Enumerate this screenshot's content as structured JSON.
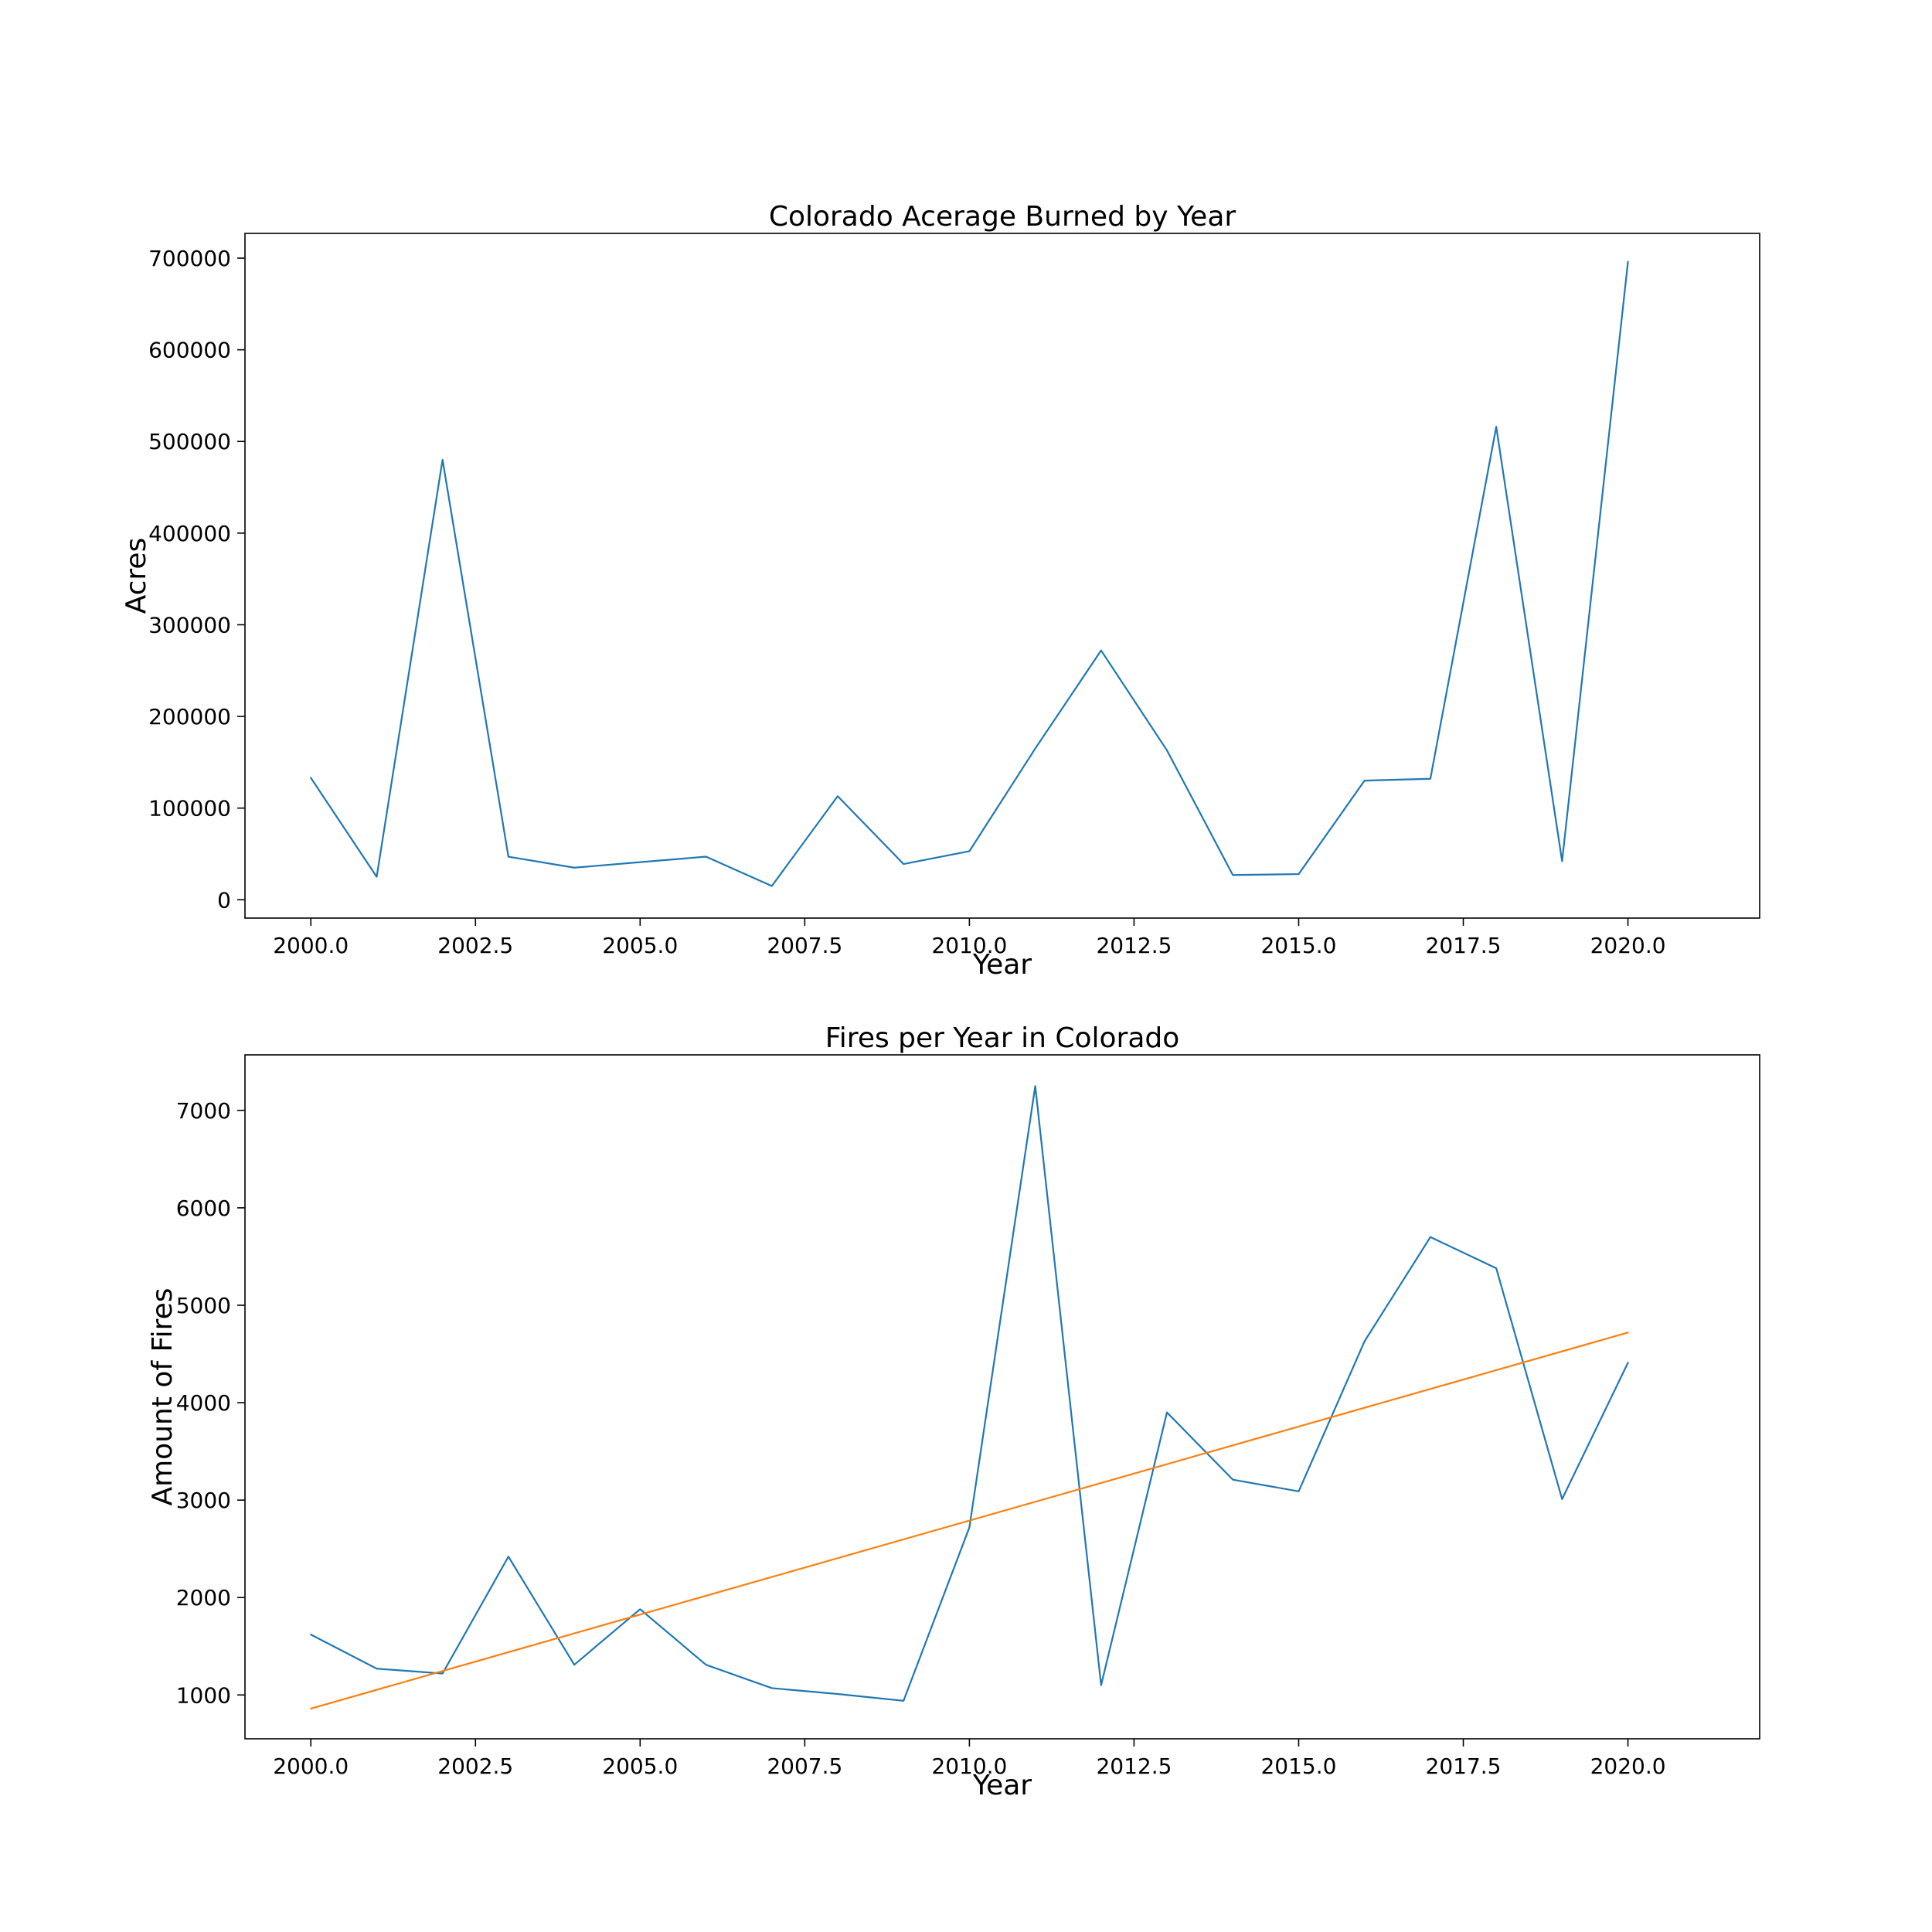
{
  "chart_data": [
    {
      "type": "line",
      "title": "Colorado Acerage Burned by Year",
      "xlabel": "Year",
      "ylabel": "Acres",
      "xlim": [
        1999.0,
        2022.0
      ],
      "ylim": [
        -20000,
        727000
      ],
      "x_ticks": [
        2000.0,
        2002.5,
        2005.0,
        2007.5,
        2010.0,
        2012.5,
        2015.0,
        2017.5,
        2020.0
      ],
      "x_tick_labels": [
        "2000.0",
        "2002.5",
        "2005.0",
        "2007.5",
        "2010.0",
        "2012.5",
        "2015.0",
        "2017.5",
        "2020.0"
      ],
      "y_ticks": [
        0,
        100000,
        200000,
        300000,
        400000,
        500000,
        600000,
        700000
      ],
      "y_tick_labels": [
        "0",
        "100000",
        "200000",
        "300000",
        "400000",
        "500000",
        "600000",
        "700000"
      ],
      "grid": false,
      "x": [
        2000,
        2001,
        2002,
        2003,
        2004,
        2005,
        2006,
        2007,
        2008,
        2009,
        2010,
        2011,
        2012,
        2013,
        2014,
        2015,
        2016,
        2017,
        2018,
        2019,
        2020
      ],
      "series": [
        {
          "color": "#1f77b4",
          "values": [
            133000,
            25000,
            480000,
            47000,
            35000,
            41000,
            47000,
            15000,
            113000,
            39000,
            53000,
            165000,
            272000,
            163000,
            27000,
            28000,
            130000,
            132000,
            516000,
            42000,
            696000
          ]
        }
      ]
    },
    {
      "type": "line",
      "title": "Fires per Year in Colorado",
      "xlabel": "Year",
      "ylabel": "Amount of Fires",
      "xlim": [
        1999.0,
        2022.0
      ],
      "ylim": [
        550,
        7570
      ],
      "x_ticks": [
        2000.0,
        2002.5,
        2005.0,
        2007.5,
        2010.0,
        2012.5,
        2015.0,
        2017.5,
        2020.0
      ],
      "x_tick_labels": [
        "2000.0",
        "2002.5",
        "2005.0",
        "2007.5",
        "2010.0",
        "2012.5",
        "2015.0",
        "2017.5",
        "2020.0"
      ],
      "y_ticks": [
        1000,
        2000,
        3000,
        4000,
        5000,
        6000,
        7000
      ],
      "y_tick_labels": [
        "1000",
        "2000",
        "3000",
        "4000",
        "5000",
        "6000",
        "7000"
      ],
      "grid": false,
      "x": [
        2000,
        2001,
        2002,
        2003,
        2004,
        2005,
        2006,
        2007,
        2008,
        2009,
        2010,
        2011,
        2012,
        2013,
        2014,
        2015,
        2016,
        2017,
        2018,
        2019,
        2020
      ],
      "series": [
        {
          "color": "#1f77b4",
          "values": [
            1620,
            1270,
            1220,
            2420,
            1310,
            1880,
            1310,
            1070,
            1010,
            940,
            2720,
            7250,
            1100,
            3900,
            3210,
            3090,
            4630,
            5700,
            5380,
            3010,
            4410
          ]
        },
        {
          "color": "#ff7f0e",
          "x": [
            2000,
            2020
          ],
          "values": [
            860,
            4720
          ]
        }
      ]
    }
  ]
}
